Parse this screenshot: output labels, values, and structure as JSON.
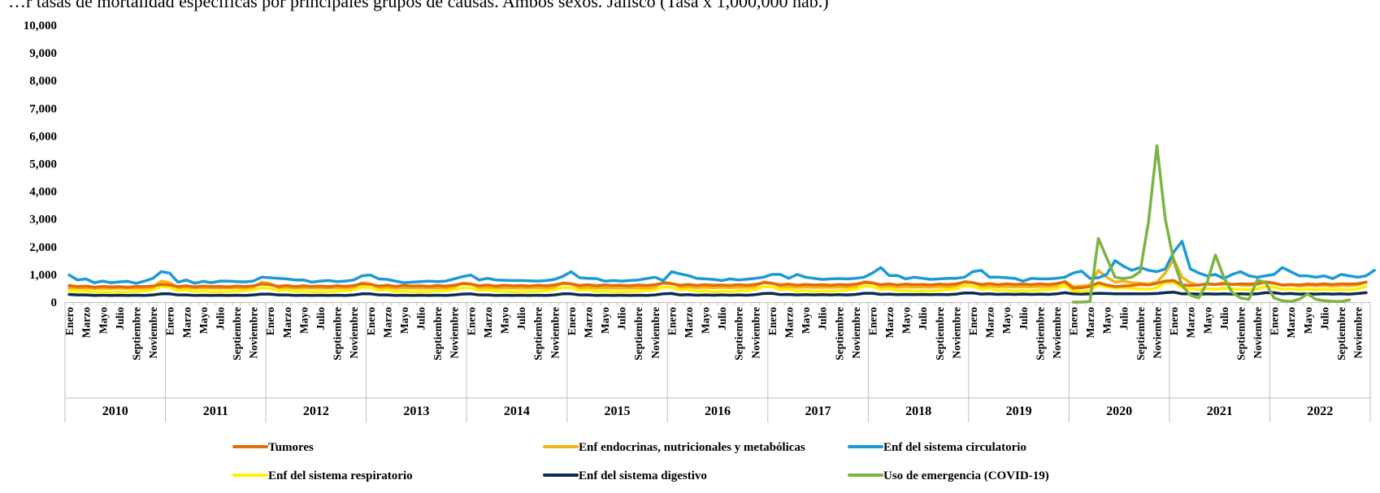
{
  "title": "…r tasas de mortalidad específicas por principales grupos de causas. Ambos sexos. Jalisco (Tasa x 1,000,000 hab.)",
  "chart_data": {
    "type": "line",
    "title": "…r tasas de mortalidad específicas por principales grupos de causas. Ambos sexos. Jalisco (Tasa x 1,000,000 hab.)",
    "ylim": [
      0,
      10000
    ],
    "yticks": [
      "0",
      "1,000",
      "2,000",
      "3,000",
      "4,000",
      "5,000",
      "6,000",
      "7,000",
      "8,000",
      "9,000",
      "10,000"
    ],
    "month_labels": [
      "Enero",
      "Marzo",
      "Mayo",
      "Julio",
      "Septiembre",
      "Noviembre"
    ],
    "years": [
      "2010",
      "2011",
      "2012",
      "2013",
      "2014",
      "2015",
      "2016",
      "2017",
      "2018",
      "2019",
      "2020",
      "2021",
      "2022"
    ],
    "grid": false,
    "legend_position": "bottom",
    "series": [
      {
        "name": "Tumores",
        "color": "#E36C09",
        "values": [
          600,
          560,
          580,
          540,
          570,
          550,
          560,
          540,
          570,
          560,
          580,
          640,
          620,
          560,
          590,
          550,
          580,
          560,
          570,
          550,
          580,
          560,
          590,
          650,
          630,
          570,
          600,
          560,
          590,
          570,
          580,
          560,
          590,
          570,
          600,
          660,
          640,
          580,
          610,
          570,
          600,
          580,
          590,
          570,
          600,
          580,
          610,
          670,
          650,
          590,
          620,
          580,
          610,
          590,
          600,
          580,
          610,
          590,
          620,
          680,
          660,
          600,
          630,
          590,
          620,
          600,
          610,
          590,
          620,
          600,
          630,
          690,
          670,
          610,
          640,
          600,
          630,
          610,
          620,
          600,
          630,
          610,
          640,
          700,
          680,
          620,
          650,
          610,
          640,
          620,
          630,
          610,
          640,
          620,
          650,
          710,
          690,
          630,
          660,
          620,
          650,
          630,
          640,
          620,
          650,
          630,
          660,
          720,
          700,
          640,
          670,
          630,
          660,
          640,
          650,
          630,
          660,
          640,
          670,
          730,
          500,
          520,
          560,
          700,
          620,
          560,
          580,
          600,
          640,
          620,
          680,
          760,
          780,
          620,
          600,
          620,
          650,
          640,
          660,
          640,
          660,
          650,
          670,
          720,
          680,
          620,
          640,
          620,
          650,
          640,
          660,
          640,
          660,
          650,
          670,
          720
        ]
      },
      {
        "name": "Enf endocrinas, nutricionales y metabólicas",
        "color": "#F2B517",
        "values": [
          520,
          500,
          510,
          490,
          500,
          490,
          500,
          490,
          510,
          500,
          530,
          760,
          700,
          520,
          540,
          500,
          520,
          500,
          510,
          500,
          520,
          510,
          540,
          720,
          680,
          520,
          540,
          500,
          520,
          500,
          510,
          500,
          520,
          510,
          540,
          700,
          660,
          520,
          540,
          500,
          520,
          500,
          510,
          500,
          520,
          510,
          540,
          690,
          660,
          520,
          540,
          500,
          520,
          500,
          510,
          500,
          520,
          510,
          540,
          700,
          660,
          520,
          540,
          500,
          520,
          500,
          510,
          500,
          520,
          510,
          540,
          720,
          680,
          540,
          560,
          520,
          540,
          520,
          530,
          520,
          540,
          530,
          560,
          730,
          690,
          550,
          570,
          530,
          550,
          530,
          540,
          530,
          550,
          540,
          570,
          740,
          700,
          560,
          580,
          540,
          560,
          540,
          550,
          540,
          560,
          550,
          580,
          750,
          710,
          570,
          590,
          550,
          570,
          550,
          560,
          550,
          570,
          560,
          590,
          760,
          560,
          580,
          620,
          1150,
          900,
          720,
          760,
          700,
          680,
          650,
          720,
          1050,
          1550,
          900,
          700,
          600,
          680,
          640,
          700,
          650,
          620,
          600,
          640,
          740,
          700,
          600,
          620,
          580,
          600,
          590,
          600,
          580,
          600,
          590,
          620,
          720
        ]
      },
      {
        "name": "Enf del sistema circulatorio",
        "color": "#1B9AD6",
        "values": [
          980,
          800,
          840,
          700,
          760,
          700,
          730,
          750,
          680,
          760,
          860,
          1100,
          1050,
          720,
          800,
          680,
          750,
          700,
          760,
          760,
          740,
          730,
          760,
          900,
          880,
          860,
          840,
          800,
          800,
          720,
          760,
          780,
          740,
          760,
          800,
          950,
          980,
          840,
          820,
          760,
          700,
          720,
          740,
          760,
          740,
          760,
          840,
          920,
          980,
          800,
          860,
          800,
          790,
          780,
          780,
          770,
          760,
          780,
          820,
          930,
          1100,
          880,
          860,
          850,
          760,
          780,
          760,
          780,
          800,
          850,
          900,
          780,
          1100,
          1020,
          960,
          860,
          840,
          820,
          780,
          840,
          800,
          830,
          860,
          900,
          1000,
          1000,
          860,
          1000,
          900,
          860,
          820,
          840,
          850,
          840,
          860,
          900,
          1050,
          1250,
          960,
          960,
          840,
          900,
          860,
          820,
          840,
          860,
          860,
          900,
          1100,
          1150,
          900,
          900,
          880,
          860,
          760,
          860,
          840,
          840,
          860,
          900,
          1050,
          1120,
          860,
          880,
          1000,
          1500,
          1300,
          1150,
          1250,
          1150,
          1100,
          1200,
          1800,
          2200,
          1200,
          1050,
          950,
          1000,
          850,
          1000,
          1100,
          950,
          900,
          950,
          1000,
          1250,
          1100,
          950,
          950,
          900,
          950,
          850,
          1000,
          950,
          900,
          950,
          1150
        ]
      },
      {
        "name": "Enf del sistema respiratorio",
        "color": "#FFF000",
        "values": [
          420,
          380,
          400,
          360,
          380,
          350,
          370,
          360,
          390,
          400,
          440,
          560,
          540,
          420,
          440,
          380,
          400,
          360,
          380,
          370,
          400,
          410,
          450,
          520,
          500,
          420,
          440,
          380,
          400,
          360,
          380,
          370,
          400,
          410,
          450,
          540,
          520,
          430,
          450,
          380,
          400,
          360,
          380,
          370,
          400,
          410,
          450,
          520,
          510,
          420,
          440,
          380,
          400,
          360,
          380,
          370,
          400,
          410,
          450,
          530,
          520,
          430,
          450,
          380,
          400,
          360,
          380,
          370,
          400,
          410,
          450,
          540,
          530,
          440,
          460,
          390,
          410,
          370,
          390,
          380,
          410,
          420,
          460,
          560,
          550,
          450,
          470,
          400,
          420,
          380,
          400,
          390,
          420,
          430,
          470,
          580,
          560,
          460,
          480,
          410,
          430,
          390,
          410,
          400,
          430,
          440,
          480,
          590,
          570,
          470,
          490,
          420,
          440,
          400,
          420,
          410,
          440,
          450,
          490,
          600,
          400,
          380,
          420,
          620,
          550,
          500,
          520,
          500,
          480,
          460,
          520,
          700,
          720,
          520,
          480,
          450,
          480,
          460,
          500,
          480,
          460,
          450,
          480,
          560,
          540,
          460,
          480,
          440,
          460,
          440,
          460,
          440,
          460,
          450,
          480,
          560
        ]
      },
      {
        "name": "Enf del sistema digestivo",
        "color": "#0D2B4E",
        "values": [
          280,
          260,
          260,
          240,
          250,
          240,
          250,
          240,
          250,
          240,
          260,
          300,
          300,
          260,
          260,
          240,
          250,
          240,
          250,
          240,
          250,
          240,
          260,
          290,
          290,
          260,
          260,
          240,
          250,
          240,
          250,
          240,
          250,
          240,
          260,
          300,
          300,
          260,
          260,
          240,
          250,
          240,
          250,
          240,
          250,
          240,
          260,
          290,
          300,
          260,
          260,
          240,
          250,
          240,
          250,
          240,
          250,
          240,
          260,
          300,
          300,
          260,
          260,
          240,
          250,
          240,
          250,
          240,
          250,
          240,
          260,
          300,
          310,
          260,
          270,
          250,
          260,
          250,
          260,
          250,
          260,
          250,
          270,
          310,
          320,
          270,
          280,
          260,
          270,
          260,
          270,
          260,
          270,
          260,
          280,
          320,
          320,
          280,
          290,
          270,
          280,
          270,
          280,
          270,
          280,
          270,
          290,
          330,
          330,
          290,
          300,
          280,
          290,
          280,
          290,
          280,
          290,
          280,
          300,
          340,
          300,
          290,
          300,
          320,
          310,
          300,
          300,
          300,
          300,
          300,
          310,
          340,
          360,
          300,
          300,
          290,
          300,
          290,
          300,
          290,
          300,
          290,
          300,
          340,
          340,
          300,
          310,
          290,
          300,
          290,
          300,
          290,
          300,
          290,
          310,
          340
        ]
      },
      {
        "name": "Uso de emergencia (COVID-19)",
        "color": "#7CB342",
        "values": [
          null,
          null,
          null,
          null,
          null,
          null,
          null,
          null,
          null,
          null,
          null,
          null,
          null,
          null,
          null,
          null,
          null,
          null,
          null,
          null,
          null,
          null,
          null,
          null,
          null,
          null,
          null,
          null,
          null,
          null,
          null,
          null,
          null,
          null,
          null,
          null,
          null,
          null,
          null,
          null,
          null,
          null,
          null,
          null,
          null,
          null,
          null,
          null,
          null,
          null,
          null,
          null,
          null,
          null,
          null,
          null,
          null,
          null,
          null,
          null,
          null,
          null,
          null,
          null,
          null,
          null,
          null,
          null,
          null,
          null,
          null,
          null,
          null,
          null,
          null,
          null,
          null,
          null,
          null,
          null,
          null,
          null,
          null,
          null,
          null,
          null,
          null,
          null,
          null,
          null,
          null,
          null,
          null,
          null,
          null,
          null,
          null,
          null,
          null,
          null,
          null,
          null,
          null,
          null,
          null,
          null,
          null,
          null,
          null,
          null,
          null,
          null,
          null,
          null,
          null,
          null,
          null,
          null,
          null,
          null,
          0,
          0,
          20,
          2300,
          1600,
          900,
          850,
          900,
          1100,
          2900,
          5650,
          3000,
          1500,
          600,
          250,
          150,
          700,
          1700,
          900,
          350,
          150,
          100,
          800,
          700,
          150,
          50,
          20,
          100,
          300,
          100,
          50,
          30,
          20,
          80
        ]
      }
    ]
  }
}
